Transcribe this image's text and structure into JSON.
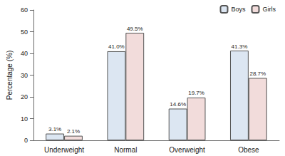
{
  "chart_data": {
    "type": "bar",
    "y_label": "Percentage (%)",
    "categories": [
      "Underweight",
      "Normal",
      "Overweight",
      "Obese"
    ],
    "series": [
      {
        "name": "Boys",
        "color": "#dce6f2",
        "values": [
          3.1,
          41.0,
          14.6,
          41.3
        ],
        "value_labels": [
          "3.1%",
          "41.0%",
          "14.6%",
          "41.3%"
        ]
      },
      {
        "name": "Girls",
        "color": "#f2dcdb",
        "values": [
          2.1,
          49.5,
          19.7,
          28.7
        ],
        "value_labels": [
          "2.1%",
          "49.5%",
          "19.7%",
          "28.7%"
        ]
      }
    ],
    "ylim": [
      0,
      60
    ],
    "yticks": [
      0,
      10,
      20,
      30,
      40,
      50,
      60
    ],
    "grid": false,
    "legend": "top-right",
    "data_labels": true
  }
}
